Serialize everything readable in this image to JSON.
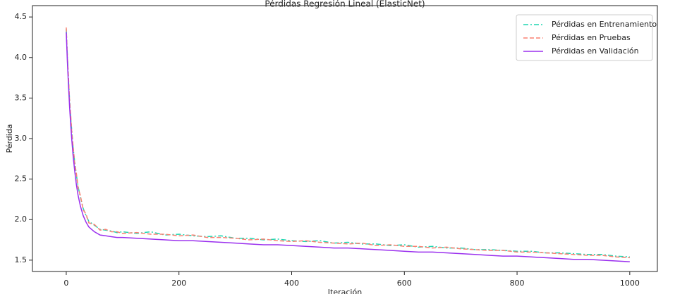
{
  "chart_data": {
    "type": "line",
    "title": "Pérdidas Regresión Lineal (ElasticNet)",
    "xlabel": "Iteración",
    "ylabel": "Pérdida",
    "x": [
      0,
      2,
      4,
      6,
      8,
      10,
      12,
      15,
      18,
      21,
      25,
      30,
      35,
      40,
      50,
      60,
      70,
      80,
      90,
      100,
      125,
      150,
      175,
      200,
      225,
      250,
      275,
      300,
      325,
      350,
      375,
      400,
      425,
      450,
      475,
      500,
      525,
      550,
      575,
      600,
      625,
      650,
      675,
      700,
      725,
      750,
      775,
      800,
      825,
      850,
      875,
      900,
      925,
      950,
      975,
      1000
    ],
    "series": [
      {
        "name": "Pérdidas en Entrenamiento",
        "color": "#1fd6b0",
        "linestyle": "dashdot",
        "values": [
          4.35,
          4.02,
          3.72,
          3.47,
          3.25,
          3.08,
          2.9,
          2.71,
          2.55,
          2.41,
          2.28,
          2.14,
          2.05,
          1.98,
          1.93,
          1.88,
          1.87,
          1.86,
          1.84,
          1.85,
          1.83,
          1.85,
          1.81,
          1.82,
          1.8,
          1.79,
          1.8,
          1.77,
          1.77,
          1.75,
          1.76,
          1.74,
          1.73,
          1.74,
          1.71,
          1.72,
          1.7,
          1.7,
          1.68,
          1.69,
          1.66,
          1.67,
          1.65,
          1.65,
          1.63,
          1.63,
          1.62,
          1.61,
          1.61,
          1.59,
          1.59,
          1.58,
          1.57,
          1.57,
          1.55,
          1.54
        ]
      },
      {
        "name": "Pérdidas en Pruebas",
        "color": "#fa8072",
        "linestyle": "dashed",
        "values": [
          4.37,
          4.0,
          3.75,
          3.45,
          3.28,
          3.05,
          2.92,
          2.69,
          2.57,
          2.39,
          2.3,
          2.12,
          2.07,
          1.96,
          1.94,
          1.87,
          1.88,
          1.85,
          1.85,
          1.83,
          1.84,
          1.82,
          1.82,
          1.8,
          1.81,
          1.78,
          1.78,
          1.77,
          1.75,
          1.76,
          1.74,
          1.73,
          1.74,
          1.72,
          1.71,
          1.7,
          1.71,
          1.68,
          1.69,
          1.67,
          1.67,
          1.65,
          1.66,
          1.64,
          1.63,
          1.62,
          1.62,
          1.6,
          1.6,
          1.59,
          1.58,
          1.57,
          1.56,
          1.56,
          1.54,
          1.53
        ]
      },
      {
        "name": "Pérdidas en Validación",
        "color": "#9b30ee",
        "linestyle": "solid",
        "values": [
          4.31,
          3.95,
          3.65,
          3.38,
          3.16,
          2.97,
          2.8,
          2.6,
          2.43,
          2.3,
          2.17,
          2.05,
          1.97,
          1.91,
          1.85,
          1.81,
          1.8,
          1.79,
          1.78,
          1.78,
          1.77,
          1.76,
          1.75,
          1.74,
          1.74,
          1.73,
          1.72,
          1.71,
          1.7,
          1.69,
          1.69,
          1.68,
          1.67,
          1.66,
          1.65,
          1.65,
          1.64,
          1.63,
          1.62,
          1.61,
          1.6,
          1.6,
          1.59,
          1.58,
          1.57,
          1.56,
          1.55,
          1.55,
          1.54,
          1.53,
          1.52,
          1.51,
          1.51,
          1.5,
          1.49,
          1.48
        ]
      }
    ],
    "xlim": [
      -60,
      1049
    ],
    "ylim": [
      1.36,
      4.64
    ],
    "xticks": [
      0,
      200,
      400,
      600,
      800,
      1000
    ],
    "yticks": [
      1.5,
      {
        "value": 2,
        "label": "2.0"
      },
      2.5,
      {
        "value": 3,
        "label": "3.0"
      },
      3.5,
      {
        "value": 4,
        "label": "4.0"
      },
      4.5
    ],
    "grid": false,
    "legend": "upper right"
  }
}
